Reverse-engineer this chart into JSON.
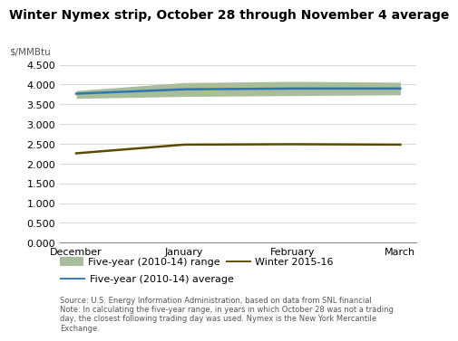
{
  "title": "Winter Nymex strip, October 28 through November 4 average",
  "ylabel": "$/MMBtu",
  "x_labels": [
    "December",
    "January",
    "February",
    "March"
  ],
  "x_positions": [
    0,
    1,
    2,
    3
  ],
  "ylim": [
    0.0,
    4.5
  ],
  "yticks": [
    0.0,
    0.5,
    1.0,
    1.5,
    2.0,
    2.5,
    3.0,
    3.5,
    4.0,
    4.5
  ],
  "five_year_upper": [
    3.85,
    4.05,
    4.08,
    4.06
  ],
  "five_year_lower": [
    3.65,
    3.7,
    3.72,
    3.74
  ],
  "five_year_avg": [
    3.77,
    3.88,
    3.9,
    3.9
  ],
  "winter_2015_16": [
    2.26,
    2.48,
    2.49,
    2.48
  ],
  "range_color": "#a8be9a",
  "avg_color": "#2e75b6",
  "winter_color": "#5a4a00",
  "background_color": "#ffffff",
  "grid_color": "#d0d0d0",
  "title_fontsize": 10,
  "ylabel_fontsize": 7.5,
  "tick_fontsize": 8,
  "legend_fontsize": 8,
  "source_text": "Source: U.S. Energy Information Administration, based on data from SNL financial\nNote: In calculating the five-year range, in years in which October 28 was not a trading\nday, the closest following trading day was used. Nymex is the New York Mercantile\nExchange.",
  "source_fontsize": 6.0
}
